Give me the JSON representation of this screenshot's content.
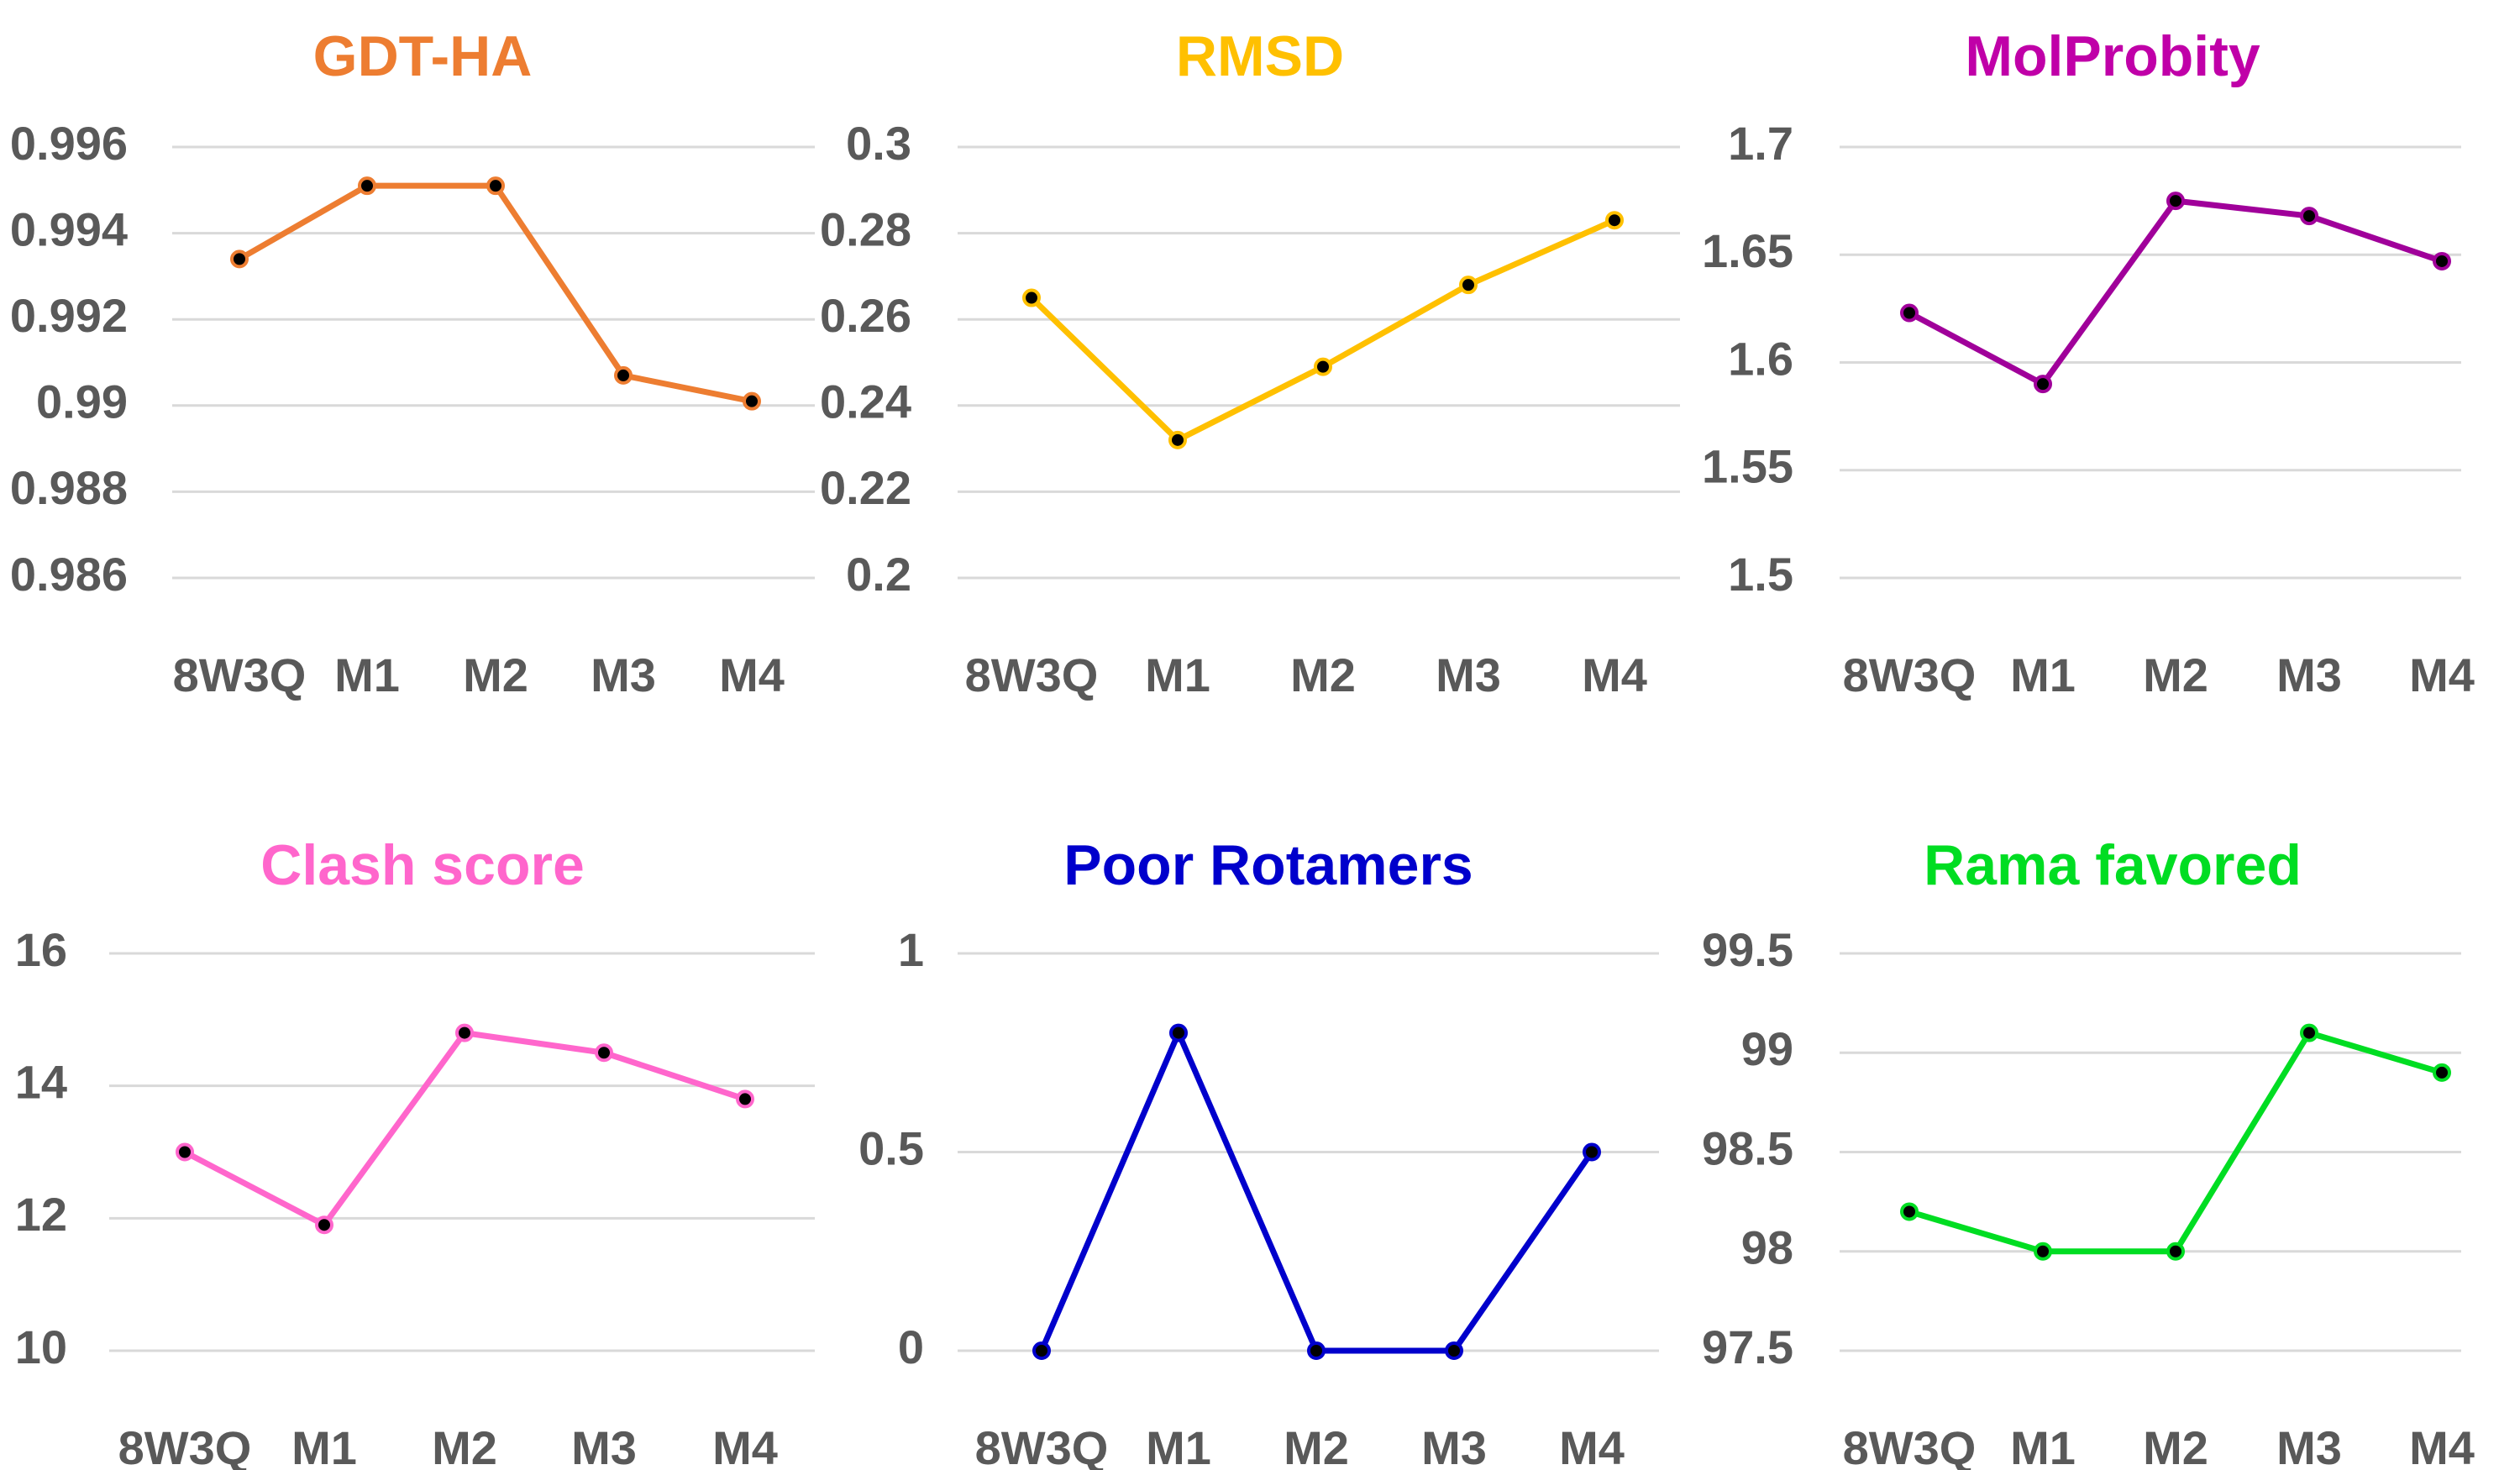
{
  "chart_data": [
    {
      "type": "line",
      "title": "GDT-HA",
      "title_color": "#ed7d31",
      "line_color": "#ed7d31",
      "categories": [
        "8W3Q",
        "M1",
        "M2",
        "M3",
        "M4"
      ],
      "values": [
        0.9934,
        0.9951,
        0.9951,
        0.9907,
        0.9901
      ],
      "ylim": [
        0.986,
        0.996
      ],
      "yticks": [
        "0.996",
        "0.994",
        "0.992",
        "0.99",
        "0.988",
        "0.986"
      ],
      "grid": true
    },
    {
      "type": "line",
      "title": "RMSD",
      "title_color": "#ffc000",
      "line_color": "#ffc000",
      "categories": [
        "8W3Q",
        "M1",
        "M2",
        "M3",
        "M4"
      ],
      "values": [
        0.265,
        0.232,
        0.249,
        0.268,
        0.283
      ],
      "ylim": [
        0.2,
        0.3
      ],
      "yticks": [
        "0.3",
        "0.28",
        "0.26",
        "0.24",
        "0.22",
        "0.2"
      ],
      "grid": true
    },
    {
      "type": "line",
      "title": "MolProbity",
      "title_color": "#c000a8",
      "line_color": "#a0009a",
      "categories": [
        "8W3Q",
        "M1",
        "M2",
        "M3",
        "M4"
      ],
      "values": [
        1.623,
        1.59,
        1.675,
        1.668,
        1.647
      ],
      "ylim": [
        1.5,
        1.7
      ],
      "yticks": [
        "1.7",
        "1.65",
        "1.6",
        "1.55",
        "1.5"
      ],
      "grid": true
    },
    {
      "type": "line",
      "title": "Clash score",
      "title_color": "#ff66cc",
      "line_color": "#ff66cc",
      "categories": [
        "8W3Q",
        "M1",
        "M2",
        "M3",
        "M4"
      ],
      "values": [
        13.0,
        11.9,
        14.8,
        14.5,
        13.8
      ],
      "ylim": [
        10,
        16
      ],
      "yticks": [
        "16",
        "14",
        "12",
        "10"
      ],
      "grid": true
    },
    {
      "type": "line",
      "title": "Poor Rotamers",
      "title_color": "#0000cc",
      "line_color": "#0000cc",
      "categories": [
        "8W3Q",
        "M1",
        "M2",
        "M3",
        "M4"
      ],
      "values": [
        0,
        0.8,
        0,
        0,
        0.5
      ],
      "ylim": [
        0,
        1
      ],
      "yticks": [
        "1",
        "0.5",
        "0"
      ],
      "grid": true
    },
    {
      "type": "line",
      "title": "Rama favored",
      "title_color": "#00dd22",
      "line_color": "#00dd22",
      "categories": [
        "8W3Q",
        "M1",
        "M2",
        "M3",
        "M4"
      ],
      "values": [
        98.2,
        98.0,
        98.0,
        99.1,
        98.9
      ],
      "ylim": [
        97.5,
        99.5
      ],
      "yticks": [
        "99.5",
        "99",
        "98.5",
        "98",
        "97.5"
      ],
      "grid": true
    }
  ]
}
